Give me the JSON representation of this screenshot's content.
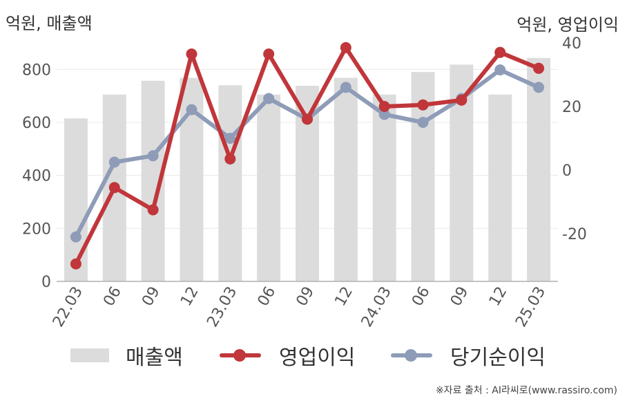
{
  "axis_units": {
    "left": "억원, 매출액",
    "right": "억원, 영업이익"
  },
  "source": "※자료 출처 : AI라씨로(www.rassiro.com)",
  "legend": [
    {
      "label": "매출액"
    },
    {
      "label": "영업이익"
    },
    {
      "label": "당기순이익"
    }
  ],
  "colors": {
    "bar": "#dcdcdc",
    "operating_profit": "#c0363a",
    "net_income": "#8e9cb8",
    "grid": "#e8e8e8"
  },
  "chart_data": {
    "type": "bar+line",
    "categories": [
      "22.03",
      "06",
      "09",
      "12",
      "23.03",
      "06",
      "09",
      "12",
      "24.03",
      "06",
      "09",
      "12",
      "25.03"
    ],
    "left_axis": {
      "label": "억원, 매출액",
      "ylim": [
        0,
        900
      ],
      "ticks": [
        0,
        200,
        400,
        600,
        800
      ]
    },
    "right_axis": {
      "label": "억원, 영업이익",
      "ylim": [
        -35,
        40
      ],
      "ticks": [
        -20,
        0,
        20,
        40
      ]
    },
    "series": [
      {
        "name": "매출액",
        "kind": "bar",
        "axis": "left",
        "values": [
          615,
          705,
          757,
          768,
          740,
          705,
          738,
          768,
          705,
          790,
          818,
          705,
          843
        ]
      },
      {
        "name": "영업이익",
        "kind": "line",
        "axis": "right",
        "values": [
          -29.5,
          -5.5,
          -12.5,
          36.5,
          3.5,
          36.5,
          16,
          38.5,
          20,
          20.5,
          22,
          37,
          32
        ]
      },
      {
        "name": "당기순이익",
        "kind": "line",
        "axis": "right",
        "values": [
          -21,
          2.5,
          4.5,
          19,
          10,
          22.5,
          16,
          26,
          17.5,
          15,
          22.5,
          31.5,
          26
        ]
      }
    ],
    "grid": true,
    "legend_position": "bottom"
  }
}
